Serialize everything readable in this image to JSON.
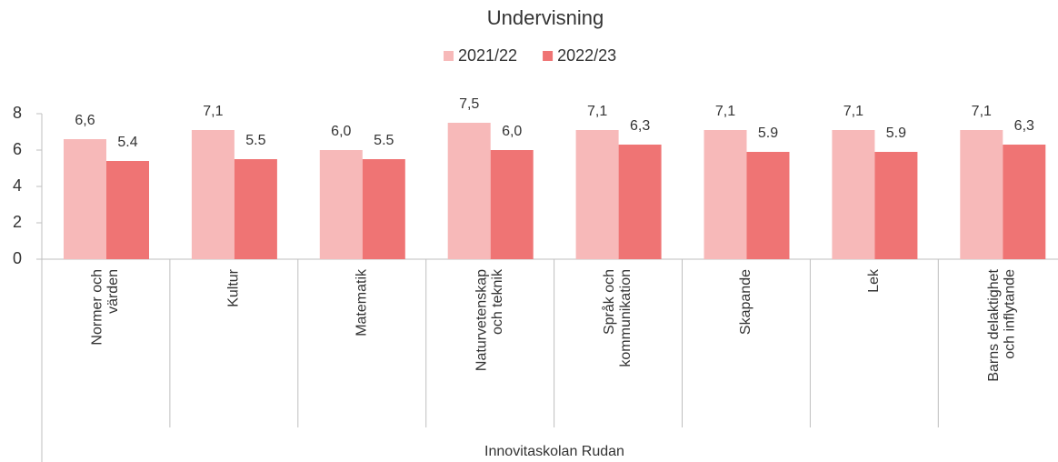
{
  "chart_data": {
    "type": "bar",
    "title": "Undervisning",
    "categories": [
      "Normer och\nvärden",
      "Kultur",
      "Matematik",
      "Naturvetenskap\noch teknik",
      "Språk och\nkommunikation",
      "Skapande",
      "Lek",
      "Barns delaktighet\noch inflytande"
    ],
    "series": [
      {
        "name": "2021/22",
        "color": "#f7b9b9",
        "values": [
          6.6,
          7.1,
          6.0,
          7.5,
          7.1,
          7.1,
          7.1,
          7.1
        ],
        "value_labels": [
          "6,6",
          "7,1",
          "6,0",
          "7,5",
          "7,1",
          "7,1",
          "7,1",
          "7,1"
        ]
      },
      {
        "name": "2022/23",
        "color": "#ef7474",
        "values": [
          5.4,
          5.5,
          5.5,
          6.0,
          6.3,
          5.9,
          5.9,
          6.3
        ],
        "value_labels": [
          "5.4",
          "5.5",
          "5.5",
          "6,0",
          "6,3",
          "5.9",
          "5.9",
          "6,3"
        ]
      }
    ],
    "xlabel": "Innovitaskolan Rudan",
    "ylim": [
      0,
      8
    ],
    "yticks": [
      0,
      2,
      4,
      6,
      8
    ],
    "grid": false,
    "legend": "top"
  }
}
